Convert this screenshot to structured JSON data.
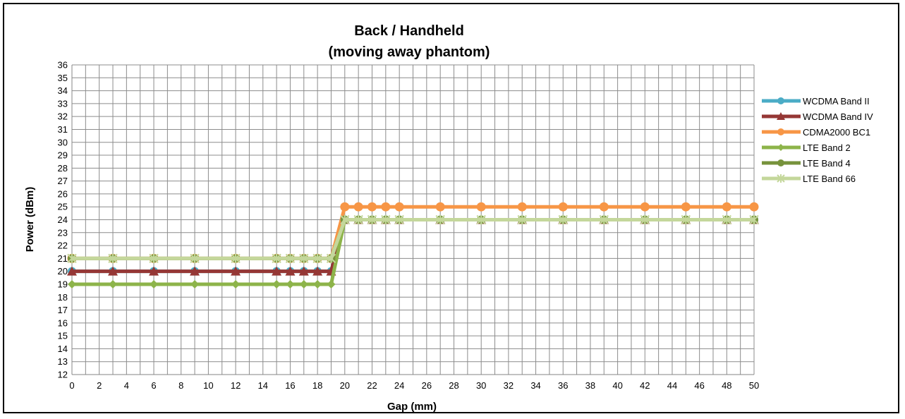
{
  "chart_data": {
    "type": "line",
    "title": "Back / Handheld",
    "subtitle": "(moving away phantom)",
    "xlabel": "Gap (mm)",
    "ylabel": "Power (dBm)",
    "xlim": [
      0,
      50
    ],
    "ylim": [
      12,
      36
    ],
    "xticks": [
      0,
      2,
      4,
      6,
      8,
      10,
      12,
      14,
      16,
      18,
      20,
      22,
      24,
      26,
      28,
      30,
      32,
      34,
      36,
      38,
      40,
      42,
      44,
      46,
      48,
      50
    ],
    "yticks": [
      12,
      13,
      14,
      15,
      16,
      17,
      18,
      19,
      20,
      21,
      22,
      23,
      24,
      25,
      26,
      27,
      28,
      29,
      30,
      31,
      32,
      33,
      34,
      35,
      36
    ],
    "grid": true,
    "legend_position": "right",
    "x": [
      0,
      3,
      6,
      9,
      12,
      15,
      16,
      17,
      18,
      19,
      20,
      21,
      22,
      23,
      24,
      27,
      30,
      33,
      36,
      39,
      42,
      45,
      48,
      50
    ],
    "series": [
      {
        "name": "WCDMA Band II",
        "color": "#4BACC6",
        "marker": "circle",
        "values": [
          20,
          20,
          20,
          20,
          20,
          20,
          20,
          20,
          20,
          20,
          24,
          24,
          24,
          24,
          24,
          24,
          24,
          24,
          24,
          24,
          24,
          24,
          24,
          24
        ]
      },
      {
        "name": "WCDMA Band IV",
        "color": "#953735",
        "marker": "triangle",
        "values": [
          20,
          20,
          20,
          20,
          20,
          20,
          20,
          20,
          20,
          20,
          24,
          24,
          24,
          24,
          24,
          24,
          24,
          24,
          24,
          24,
          24,
          24,
          24,
          24
        ]
      },
      {
        "name": "CDMA2000 BC1",
        "color": "#F79646",
        "marker": "circle",
        "values": [
          21,
          21,
          21,
          21,
          21,
          21,
          21,
          21,
          21,
          21,
          25,
          25,
          25,
          25,
          25,
          25,
          25,
          25,
          25,
          25,
          25,
          25,
          25,
          25
        ]
      },
      {
        "name": "LTE Band 2",
        "color": "#8DB44A",
        "marker": "diamond",
        "values": [
          19,
          19,
          19,
          19,
          19,
          19,
          19,
          19,
          19,
          19,
          24,
          24,
          24,
          24,
          24,
          24,
          24,
          24,
          24,
          24,
          24,
          24,
          24,
          24
        ]
      },
      {
        "name": "LTE Band 4",
        "color": "#77933C",
        "marker": "circle",
        "values": [
          21,
          21,
          21,
          21,
          21,
          21,
          21,
          21,
          21,
          21,
          24,
          24,
          24,
          24,
          24,
          24,
          24,
          24,
          24,
          24,
          24,
          24,
          24,
          24
        ]
      },
      {
        "name": "LTE Band 66",
        "color": "#C4D79B",
        "marker": "star",
        "values": [
          21,
          21,
          21,
          21,
          21,
          21,
          21,
          21,
          21,
          21,
          24,
          24,
          24,
          24,
          24,
          24,
          24,
          24,
          24,
          24,
          24,
          24,
          24,
          24
        ]
      }
    ]
  }
}
